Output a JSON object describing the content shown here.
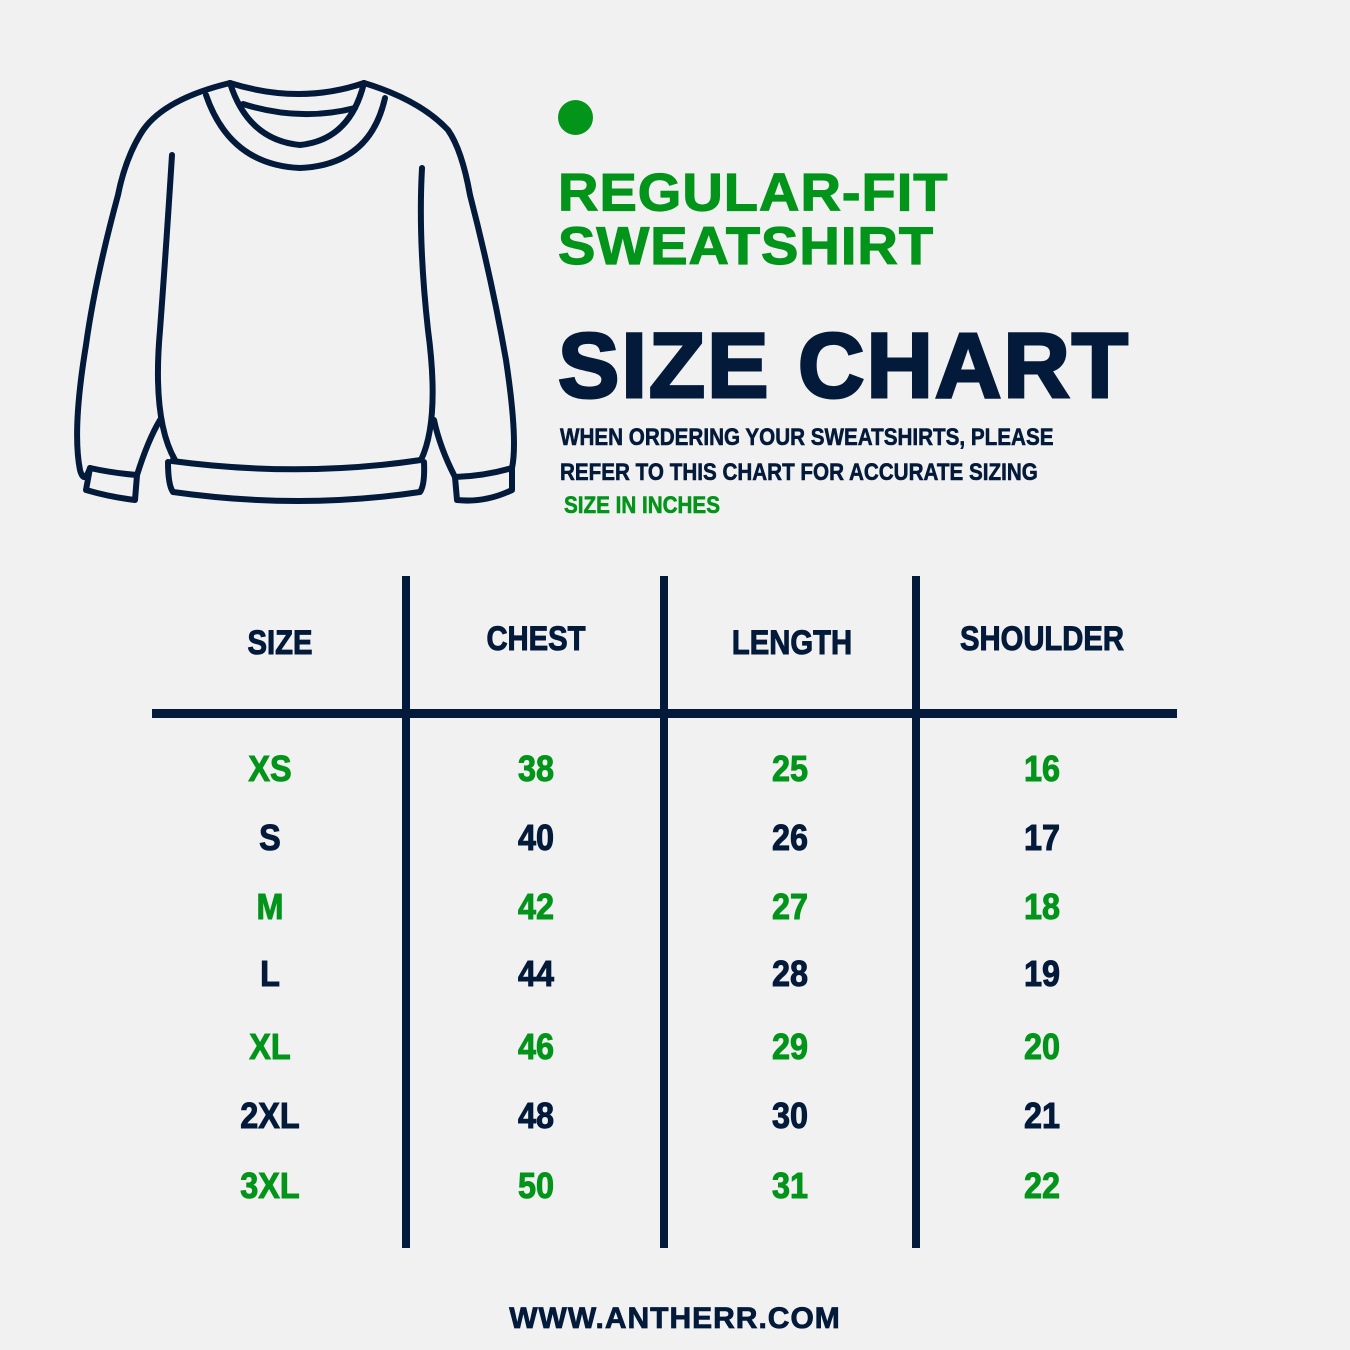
{
  "header": {
    "subtitle_line1": "REGULAR-FIT",
    "subtitle_line2": "SWEATSHIRT",
    "title": "SIZE CHART",
    "description_line1": "WHEN ORDERING YOUR SWEATSHIRTS, PLEASE",
    "description_line2": "REFER TO THIS CHART FOR ACCURATE SIZING",
    "units_note": "SIZE IN INCHES",
    "illustration": "sweatshirt-outline-icon",
    "accent_dot": "green-dot-icon"
  },
  "colors": {
    "accent": "#03941a",
    "primary": "#031a3a",
    "background": "#f1f1f1"
  },
  "table": {
    "columns": [
      "SIZE",
      "CHEST",
      "LENGTH",
      "SHOULDER"
    ],
    "rows": [
      {
        "size": "XS",
        "chest": "38",
        "length": "25",
        "shoulder": "16",
        "color": "green"
      },
      {
        "size": "S",
        "chest": "40",
        "length": "26",
        "shoulder": "17",
        "color": "navy"
      },
      {
        "size": "M",
        "chest": "42",
        "length": "27",
        "shoulder": "18",
        "color": "green"
      },
      {
        "size": "L",
        "chest": "44",
        "length": "28",
        "shoulder": "19",
        "color": "navy"
      },
      {
        "size": "XL",
        "chest": "46",
        "length": "29",
        "shoulder": "20",
        "color": "green"
      },
      {
        "size": "2XL",
        "chest": "48",
        "length": "30",
        "shoulder": "21",
        "color": "navy"
      },
      {
        "size": "3XL",
        "chest": "50",
        "length": "31",
        "shoulder": "22",
        "color": "green"
      }
    ]
  },
  "chart_data": {
    "type": "table",
    "title": "REGULAR-FIT SWEATSHIRT SIZE CHART",
    "subtitle": "SIZE IN INCHES",
    "columns": [
      "SIZE",
      "CHEST",
      "LENGTH",
      "SHOULDER"
    ],
    "categories": [
      "XS",
      "S",
      "M",
      "L",
      "XL",
      "2XL",
      "3XL"
    ],
    "series": [
      {
        "name": "CHEST",
        "values": [
          38,
          40,
          42,
          44,
          46,
          48,
          50
        ]
      },
      {
        "name": "LENGTH",
        "values": [
          25,
          26,
          27,
          28,
          29,
          30,
          31
        ]
      },
      {
        "name": "SHOULDER",
        "values": [
          16,
          17,
          18,
          19,
          20,
          21,
          22
        ]
      }
    ]
  },
  "footer": {
    "website": "WWW.ANTHERR.COM"
  }
}
